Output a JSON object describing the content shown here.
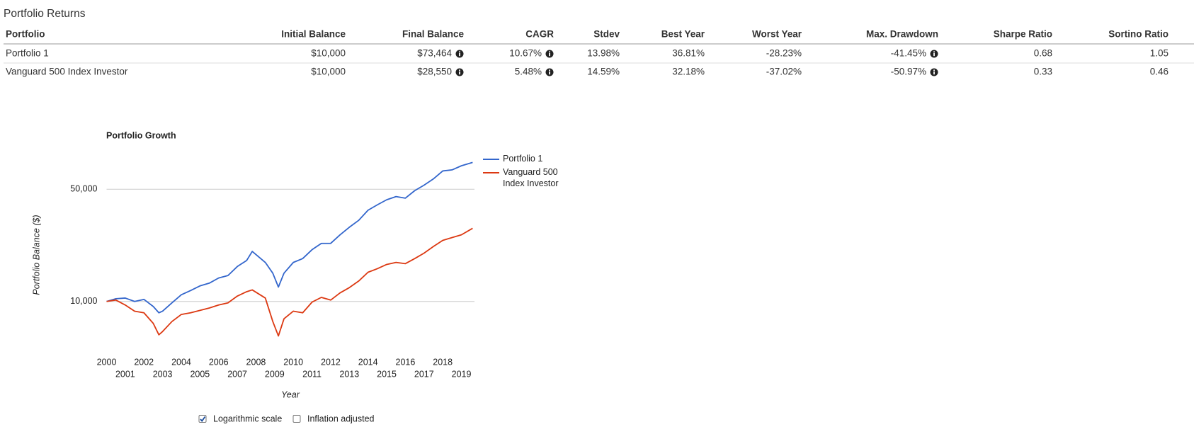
{
  "header": {
    "title": "Portfolio Returns"
  },
  "table": {
    "columns": [
      "Portfolio",
      "Initial Balance",
      "Final Balance",
      "CAGR",
      "Stdev",
      "Best Year",
      "Worst Year",
      "Max. Drawdown",
      "Sharpe Ratio",
      "Sortino Ratio"
    ],
    "rows": [
      [
        "Portfolio 1",
        "$10,000",
        "$73,464",
        "10.67%",
        "13.98%",
        "36.81%",
        "-28.23%",
        "-41.45%",
        "0.68",
        "1.05"
      ],
      [
        "Vanguard 500 Index Investor",
        "$10,000",
        "$28,550",
        "5.48%",
        "14.59%",
        "32.18%",
        "-37.02%",
        "-50.97%",
        "0.33",
        "0.46"
      ]
    ]
  },
  "chart_data": {
    "type": "line",
    "title": "Portfolio Growth",
    "xlabel": "Year",
    "ylabel": "Portfolio Balance ($)",
    "log_y": true,
    "grid": true,
    "legend": "right",
    "x": [
      2000,
      2000.5,
      2001,
      2001.5,
      2002,
      2002.5,
      2002.8,
      2003,
      2003.5,
      2004,
      2004.5,
      2005,
      2005.5,
      2006,
      2006.5,
      2007,
      2007.5,
      2007.8,
      2008.5,
      2008.9,
      2009.2,
      2009.5,
      2010,
      2010.5,
      2011,
      2011.5,
      2012,
      2012.5,
      2013,
      2013.5,
      2014,
      2014.5,
      2015,
      2015.5,
      2016,
      2016.5,
      2017,
      2017.5,
      2018,
      2018.5,
      2019,
      2019.6
    ],
    "series": [
      {
        "name": "Portfolio 1",
        "color": "#3366cc",
        "values": [
          10000,
          10400,
          10500,
          10000,
          10300,
          9300,
          8500,
          8700,
          9800,
          11000,
          11700,
          12500,
          13000,
          14000,
          14500,
          16500,
          18000,
          20500,
          17500,
          15000,
          12300,
          15000,
          17500,
          18500,
          21000,
          23000,
          23000,
          26000,
          29000,
          32000,
          37000,
          40000,
          43000,
          45000,
          44000,
          49000,
          53000,
          58000,
          65000,
          66000,
          70000,
          73464
        ]
      },
      {
        "name": "Vanguard 500 Index Investor",
        "color": "#dc3912",
        "values": [
          10000,
          10200,
          9500,
          8700,
          8500,
          7300,
          6200,
          6500,
          7500,
          8300,
          8500,
          8800,
          9100,
          9500,
          9800,
          10800,
          11500,
          11800,
          10500,
          7500,
          6100,
          7800,
          8700,
          8500,
          9900,
          10600,
          10200,
          11300,
          12200,
          13400,
          15200,
          16000,
          17000,
          17500,
          17200,
          18500,
          20000,
          22000,
          24000,
          25000,
          26000,
          28550
        ]
      }
    ],
    "xlim": [
      2000,
      2019.7
    ],
    "xticks": [
      2000,
      2001,
      2002,
      2003,
      2004,
      2005,
      2006,
      2007,
      2008,
      2009,
      2010,
      2011,
      2012,
      2013,
      2014,
      2015,
      2016,
      2017,
      2018,
      2019
    ],
    "ylim": [
      5000,
      85000
    ],
    "yticks": [
      {
        "value": 10000,
        "label": "10,000"
      },
      {
        "value": 50000,
        "label": "50,000"
      }
    ]
  },
  "controls": [
    {
      "label": "Logarithmic scale",
      "checked": true
    },
    {
      "label": "Inflation adjusted",
      "checked": false
    }
  ]
}
